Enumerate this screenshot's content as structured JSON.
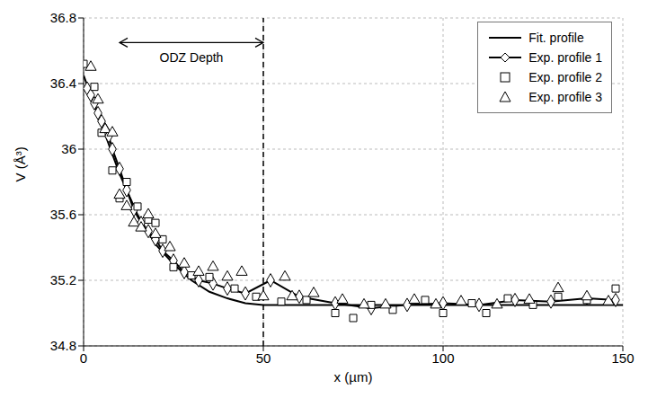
{
  "chart_data": {
    "type": "scatter",
    "x_label": "x (µm)",
    "y_label": "V (Å³)",
    "xlim": [
      0,
      150
    ],
    "xticks": [
      0,
      50,
      100,
      150
    ],
    "ylim": [
      34.8,
      36.8
    ],
    "yticks": [
      34.8,
      35.2,
      35.6,
      36,
      36.4,
      36.8
    ],
    "grid": true,
    "legend": "top right",
    "reference_lines": [
      {
        "x": 50,
        "line_style": "dashed"
      }
    ],
    "annotations": [
      {
        "text": "ODZ Depth",
        "x": [
          10,
          50
        ],
        "y": 36.65
      }
    ],
    "series": [
      {
        "name": "Fit. profile",
        "type": "line",
        "color": "#000000",
        "line_style": "solid",
        "x": [
          0,
          5,
          10,
          15,
          20,
          25,
          30,
          35,
          40,
          45,
          50,
          150
        ],
        "values": [
          36.45,
          36.15,
          35.85,
          35.6,
          35.42,
          35.3,
          35.2,
          35.13,
          35.09,
          35.06,
          35.05,
          35.05
        ]
      },
      {
        "name": "Exp. profile 1",
        "type": "line",
        "color": "#000000",
        "marker": "diamond",
        "line_style": "solid",
        "x": [
          1,
          2,
          3,
          4,
          5,
          6,
          7,
          8,
          10,
          12,
          14,
          16,
          18,
          20,
          22,
          25,
          28,
          32,
          36,
          40,
          45,
          52,
          60,
          70,
          80,
          90,
          100,
          110,
          120,
          130,
          140,
          148
        ],
        "values": [
          36.37,
          36.33,
          36.28,
          36.22,
          36.17,
          36.12,
          36.08,
          36.0,
          35.88,
          35.75,
          35.63,
          35.55,
          35.5,
          35.45,
          35.38,
          35.32,
          35.25,
          35.2,
          35.18,
          35.15,
          35.12,
          35.2,
          35.1,
          35.06,
          35.03,
          35.05,
          35.06,
          35.05,
          35.08,
          35.07,
          35.09,
          35.08
        ]
      },
      {
        "name": "Exp. profile 2",
        "type": "scatter",
        "color": "#000000",
        "marker": "square",
        "x": [
          0,
          3,
          5,
          8,
          10,
          12,
          15,
          18,
          20,
          22,
          25,
          30,
          35,
          42,
          48,
          55,
          62,
          70,
          75,
          80,
          86,
          95,
          100,
          108,
          112,
          118,
          125,
          132,
          140,
          148
        ],
        "values": [
          36.52,
          36.38,
          36.1,
          35.87,
          35.7,
          35.8,
          35.65,
          35.57,
          35.55,
          35.45,
          35.28,
          35.23,
          35.22,
          35.15,
          35.1,
          35.07,
          35.08,
          35.0,
          34.97,
          35.05,
          35.02,
          35.08,
          35.0,
          35.06,
          35.0,
          35.09,
          35.05,
          35.1,
          35.08,
          35.15
        ]
      },
      {
        "name": "Exp. profile 3",
        "type": "scatter",
        "color": "#000000",
        "marker": "triangle",
        "x": [
          2,
          4,
          6,
          8,
          10,
          12,
          14,
          16,
          18,
          20,
          24,
          28,
          32,
          36,
          40,
          44,
          50,
          56,
          58,
          64,
          72,
          78,
          84,
          92,
          98,
          105,
          115,
          124,
          132,
          140,
          146
        ],
        "values": [
          36.5,
          36.3,
          36.12,
          36.1,
          35.72,
          35.65,
          35.55,
          35.52,
          35.6,
          35.48,
          35.4,
          35.3,
          35.25,
          35.28,
          35.22,
          35.25,
          35.1,
          35.22,
          35.1,
          35.12,
          35.08,
          35.05,
          35.05,
          35.08,
          35.05,
          35.07,
          35.05,
          35.08,
          35.15,
          35.1,
          35.07
        ]
      }
    ]
  }
}
